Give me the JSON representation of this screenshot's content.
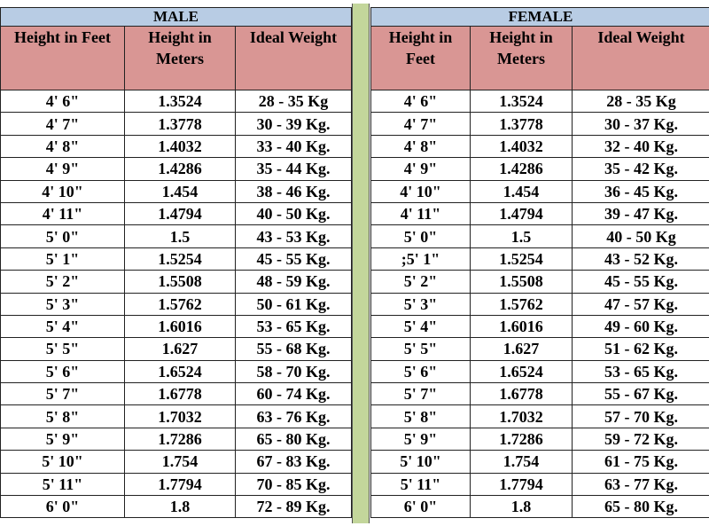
{
  "male": {
    "title": "MALE",
    "headers": [
      "Height in Feet",
      "Height in Meters",
      "Ideal Weight"
    ],
    "rows": [
      [
        "4' 6\"",
        "1.3524",
        "28 - 35 Kg"
      ],
      [
        "4' 7\"",
        "1.3778",
        "30 - 39 Kg."
      ],
      [
        "4' 8\"",
        "1.4032",
        "33 - 40 Kg."
      ],
      [
        "4' 9\"",
        "1.4286",
        "35 - 44 Kg."
      ],
      [
        "4' 10\"",
        "1.454",
        "38 - 46 Kg."
      ],
      [
        "4' 11\"",
        "1.4794",
        "40 - 50 Kg."
      ],
      [
        "5' 0\"",
        "1.5",
        "43 - 53 Kg."
      ],
      [
        "5' 1\"",
        "1.5254",
        "45 - 55 Kg."
      ],
      [
        "5' 2\"",
        "1.5508",
        "48 - 59 Kg."
      ],
      [
        "5' 3\"",
        "1.5762",
        "50 - 61 Kg."
      ],
      [
        "5' 4\"",
        "1.6016",
        "53 - 65 Kg."
      ],
      [
        "5' 5\"",
        "1.627",
        "55 - 68 Kg."
      ],
      [
        "5' 6\"",
        "1.6524",
        "58 - 70 Kg."
      ],
      [
        "5' 7\"",
        "1.6778",
        "60 - 74 Kg."
      ],
      [
        "5' 8\"",
        "1.7032",
        "63 - 76 Kg."
      ],
      [
        "5' 9\"",
        "1.7286",
        "65 - 80 Kg."
      ],
      [
        "5' 10\"",
        "1.754",
        "67 - 83 Kg."
      ],
      [
        "5' 11\"",
        "1.7794",
        "70 - 85 Kg."
      ],
      [
        "6' 0\"",
        "1.8",
        "72 - 89 Kg."
      ]
    ]
  },
  "female": {
    "title": "FEMALE",
    "headers": [
      "Height in Feet",
      "Height in Meters",
      "Ideal Weight"
    ],
    "rows": [
      [
        "4' 6\"",
        "1.3524",
        "28 - 35 Kg"
      ],
      [
        "4' 7\"",
        "1.3778",
        "30 - 37 Kg."
      ],
      [
        "4' 8\"",
        "1.4032",
        "32 - 40 Kg."
      ],
      [
        "4' 9\"",
        "1.4286",
        "35 - 42 Kg."
      ],
      [
        "4' 10\"",
        "1.454",
        "36 - 45 Kg."
      ],
      [
        "4' 11\"",
        "1.4794",
        "39 - 47 Kg."
      ],
      [
        "5' 0\"",
        "1.5",
        "40 - 50 Kg"
      ],
      [
        ";5' 1\"",
        "1.5254",
        "43 - 52 Kg."
      ],
      [
        "5' 2\"",
        "1.5508",
        "45 - 55 Kg."
      ],
      [
        "5' 3\"",
        "1.5762",
        "47 - 57 Kg."
      ],
      [
        "5' 4\"",
        "1.6016",
        "49 - 60 Kg."
      ],
      [
        "5' 5\"",
        "1.627",
        "51 - 62 Kg."
      ],
      [
        "5' 6\"",
        "1.6524",
        "53 - 65 Kg."
      ],
      [
        "5' 7\"",
        "1.6778",
        "55 - 67 Kg."
      ],
      [
        "5' 8\"",
        "1.7032",
        "57 - 70 Kg."
      ],
      [
        "5' 9\"",
        "1.7286",
        "59 - 72 Kg."
      ],
      [
        "5' 10\"",
        "1.754",
        "61 - 75 Kg."
      ],
      [
        "5' 11\"",
        "1.7794",
        "63 - 77 Kg."
      ],
      [
        "6' 0\"",
        "1.8",
        "65 - 80 Kg."
      ]
    ]
  }
}
